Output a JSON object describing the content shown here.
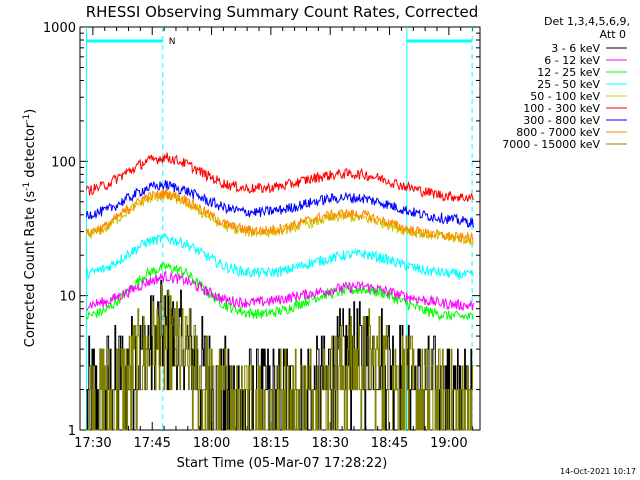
{
  "chart_data": {
    "type": "line",
    "title": "RHESSI Observing Summary Count Rates, Corrected",
    "xlabel": "Start Time (05-Mar-07 17:28:22)",
    "ylabel_main": "Corrected Count Rate (s",
    "ylabel_sup1": "-1",
    "ylabel_mid": " detector",
    "ylabel_sup2": "-1",
    "ylabel_end": ")",
    "footer": "14-Oct-2021 10:17",
    "legend_header": [
      "Det 1,3,4,5,6,9,",
      "Att 0"
    ],
    "y_scale": "log",
    "ylim": [
      1,
      1000
    ],
    "y_ticks": [
      {
        "v": 1,
        "label": "1"
      },
      {
        "v": 10,
        "label": "10"
      },
      {
        "v": 100,
        "label": "100"
      },
      {
        "v": 1000,
        "label": "1000"
      }
    ],
    "xlim_min": [
      -1.63,
      99.5
    ],
    "x_ticks": [
      {
        "min": 1.63,
        "label": "17:30"
      },
      {
        "min": 16.63,
        "label": "17:45"
      },
      {
        "min": 31.63,
        "label": "18:00"
      },
      {
        "min": 46.63,
        "label": "18:15"
      },
      {
        "min": 61.63,
        "label": "18:30"
      },
      {
        "min": 76.63,
        "label": "18:45"
      },
      {
        "min": 91.63,
        "label": "19:00"
      }
    ],
    "night_intervals_min": [
      [
        0,
        19.3
      ],
      [
        81.0,
        97.5
      ]
    ],
    "night_marker": "N",
    "boundary_lines_min": [
      0,
      19.3,
      81.0,
      97.5
    ],
    "series": [
      {
        "name": "3 - 6 keV",
        "color": "#000000",
        "style": "stair",
        "x": [
          0,
          5,
          10,
          12,
          15,
          18,
          20,
          22,
          25,
          28,
          30,
          32,
          35,
          40,
          45,
          55,
          60,
          62,
          65,
          70,
          75,
          78,
          80,
          85,
          90,
          95,
          98
        ],
        "y": [
          1.8,
          2.2,
          2.6,
          3.2,
          4.0,
          4.8,
          5.0,
          4.5,
          4.0,
          3.2,
          2.6,
          2.2,
          1.8,
          1.6,
          1.7,
          1.9,
          2.1,
          2.6,
          3.4,
          3.7,
          3.5,
          3.0,
          2.4,
          2.0,
          1.8,
          1.6,
          1.5
        ]
      },
      {
        "name": "6 - 12 keV",
        "color": "#ff00ff",
        "x": [
          0,
          5,
          10,
          15,
          20,
          25,
          30,
          35,
          40,
          45,
          50,
          55,
          60,
          65,
          70,
          75,
          80,
          85,
          90,
          95,
          98
        ],
        "y": [
          8.5,
          9.0,
          10.5,
          12.5,
          14.0,
          13.0,
          11.0,
          9.3,
          8.9,
          9.0,
          9.5,
          10.2,
          10.8,
          11.5,
          11.8,
          11.0,
          10.0,
          9.3,
          8.8,
          8.5,
          8.4
        ]
      },
      {
        "name": "12 - 25 keV",
        "color": "#00ff00",
        "x": [
          0,
          5,
          10,
          15,
          20,
          25,
          30,
          35,
          40,
          45,
          50,
          55,
          60,
          65,
          70,
          75,
          80,
          85,
          90,
          95,
          98
        ],
        "y": [
          7.0,
          7.8,
          10.5,
          14.5,
          16.5,
          15.0,
          11.0,
          8.5,
          7.5,
          7.3,
          7.8,
          9.0,
          10.2,
          10.8,
          11.2,
          10.5,
          9.0,
          7.8,
          7.2,
          7.0,
          6.9
        ]
      },
      {
        "name": "25 - 50 keV",
        "color": "#00ffff",
        "x": [
          0,
          5,
          10,
          15,
          20,
          25,
          30,
          35,
          40,
          45,
          50,
          55,
          60,
          65,
          70,
          75,
          80,
          85,
          90,
          95,
          98
        ],
        "y": [
          14.5,
          16.0,
          20.0,
          25.0,
          27.0,
          24.5,
          20.0,
          16.5,
          15.0,
          14.8,
          15.3,
          17.0,
          18.5,
          20.0,
          20.5,
          19.0,
          17.0,
          15.5,
          14.8,
          14.3,
          14.2
        ]
      },
      {
        "name": "50 - 100 keV",
        "color": "#cccc00",
        "x": [
          0,
          5,
          10,
          15,
          20,
          25,
          30,
          35,
          40,
          45,
          50,
          55,
          60,
          65,
          70,
          75,
          80,
          85,
          90,
          95,
          98
        ],
        "y": [
          28.0,
          32.0,
          42.0,
          52.0,
          56.0,
          50.0,
          40.0,
          33.0,
          30.0,
          29.5,
          31.0,
          34.0,
          37.0,
          39.0,
          38.0,
          35.0,
          31.0,
          29.0,
          27.5,
          26.5,
          26.0
        ]
      },
      {
        "name": "100 - 300 keV",
        "color": "#ff0000",
        "x": [
          0,
          5,
          10,
          15,
          20,
          25,
          30,
          35,
          40,
          45,
          50,
          55,
          60,
          65,
          70,
          75,
          80,
          85,
          90,
          95,
          98
        ],
        "y": [
          60.0,
          67.0,
          82.0,
          100.0,
          108.0,
          97.0,
          80.0,
          68.0,
          63.0,
          63.0,
          66.0,
          72.0,
          78.0,
          81.0,
          80.0,
          74.0,
          66.0,
          60.0,
          56.0,
          54.0,
          54.0
        ]
      },
      {
        "name": "300 - 800 keV",
        "color": "#0000ff",
        "x": [
          0,
          5,
          10,
          15,
          20,
          25,
          30,
          35,
          40,
          45,
          50,
          55,
          60,
          65,
          70,
          75,
          80,
          85,
          90,
          95,
          98
        ],
        "y": [
          40.0,
          43.0,
          52.0,
          63.0,
          67.0,
          61.0,
          52.0,
          45.0,
          42.0,
          42.0,
          44.0,
          48.0,
          52.0,
          54.0,
          53.0,
          49.0,
          44.0,
          40.0,
          38.0,
          36.0,
          35.0
        ]
      },
      {
        "name": "800 - 7000 keV",
        "color": "#ff8800",
        "x": [
          0,
          5,
          10,
          15,
          20,
          25,
          30,
          35,
          40,
          45,
          50,
          55,
          60,
          65,
          70,
          75,
          80,
          85,
          90,
          95,
          98
        ],
        "y": [
          29.0,
          33.0,
          43.0,
          54.0,
          58.0,
          52.0,
          42.0,
          34.0,
          31.0,
          30.5,
          32.0,
          35.5,
          39.0,
          41.0,
          40.0,
          36.0,
          32.0,
          29.5,
          28.0,
          27.0,
          26.5
        ]
      },
      {
        "name": "7000 - 15000 keV",
        "color": "#808000",
        "style": "stair",
        "x": [
          0,
          5,
          10,
          12,
          15,
          18,
          20,
          22,
          25,
          28,
          30,
          32,
          35,
          40,
          45,
          55,
          60,
          62,
          65,
          70,
          75,
          78,
          80,
          85,
          90,
          95,
          98
        ],
        "y": [
          1.4,
          1.8,
          2.2,
          2.8,
          3.6,
          4.5,
          4.6,
          4.0,
          3.4,
          2.6,
          2.1,
          1.8,
          1.5,
          1.4,
          1.5,
          1.7,
          1.9,
          2.2,
          2.8,
          3.2,
          3.0,
          2.6,
          2.2,
          1.8,
          1.6,
          1.5,
          1.4
        ]
      }
    ]
  }
}
